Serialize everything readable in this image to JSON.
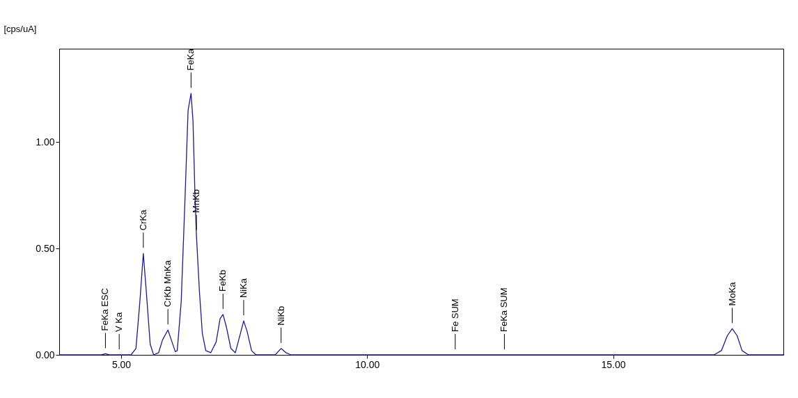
{
  "chart_data": {
    "type": "line",
    "ylabel": "[cps/uA]",
    "x": [
      3.74,
      4.6,
      4.68,
      4.76,
      4.96,
      5.2,
      5.3,
      5.38,
      5.45,
      5.51,
      5.59,
      5.66,
      5.76,
      5.84,
      5.95,
      6.02,
      6.1,
      6.14,
      6.22,
      6.3,
      6.36,
      6.42,
      6.46,
      6.5,
      6.53,
      6.59,
      6.65,
      6.72,
      6.82,
      6.93,
      7.01,
      7.07,
      7.14,
      7.23,
      7.32,
      7.4,
      7.49,
      7.56,
      7.65,
      7.74,
      8.13,
      8.25,
      8.35,
      8.45,
      11.79,
      12.79,
      17.05,
      17.2,
      17.32,
      17.42,
      17.52,
      17.62,
      17.75,
      18.46
    ],
    "series": [
      {
        "color": "#1c1c84",
        "values": [
          0,
          0,
          0.005,
          0,
          0,
          0,
          0.03,
          0.25,
          0.477,
          0.3,
          0.05,
          0,
          0.01,
          0.07,
          0.117,
          0.07,
          0.015,
          0.02,
          0.25,
          0.75,
          1.15,
          1.23,
          1.1,
          0.75,
          0.56,
          0.3,
          0.1,
          0.02,
          0.01,
          0.06,
          0.17,
          0.19,
          0.13,
          0.03,
          0.01,
          0.08,
          0.16,
          0.11,
          0.02,
          0,
          0,
          0.03,
          0.01,
          0,
          0,
          0,
          0,
          0.02,
          0.09,
          0.123,
          0.09,
          0.02,
          0,
          0
        ]
      }
    ],
    "xlim": [
      3.74,
      18.46
    ],
    "ylim": [
      0,
      1.44
    ],
    "xticks": [
      {
        "value": 5,
        "label": "5.00"
      },
      {
        "value": 10,
        "label": "10.00"
      },
      {
        "value": 15,
        "label": "15.00"
      }
    ],
    "yticks": [
      {
        "value": 0,
        "label": "0.00"
      },
      {
        "value": 0.5,
        "label": "0.50"
      },
      {
        "value": 1,
        "label": "1.00"
      }
    ],
    "grid": false,
    "annotations": [
      {
        "text": "FeKa ESC",
        "x": 4.68,
        "y": 0.005
      },
      {
        "text": "V Ka",
        "x": 4.96,
        "y": 0
      },
      {
        "text": "CrKa",
        "x": 5.45,
        "y": 0.477
      },
      {
        "text": "CrKb MnKa",
        "x": 5.95,
        "y": 0.117
      },
      {
        "text": "FeKa",
        "x": 6.42,
        "y": 1.23
      },
      {
        "text": "MnKb",
        "x": 6.53,
        "y": 0.56
      },
      {
        "text": "FeKb",
        "x": 7.07,
        "y": 0.19
      },
      {
        "text": "NiKa",
        "x": 7.49,
        "y": 0.16
      },
      {
        "text": "NiKb",
        "x": 8.25,
        "y": 0.03
      },
      {
        "text": "Fe  SUM",
        "x": 11.79,
        "y": 0
      },
      {
        "text": "FeKa SUM",
        "x": 12.79,
        "y": 0
      },
      {
        "text": "MoKa",
        "x": 17.42,
        "y": 0.123
      }
    ]
  }
}
